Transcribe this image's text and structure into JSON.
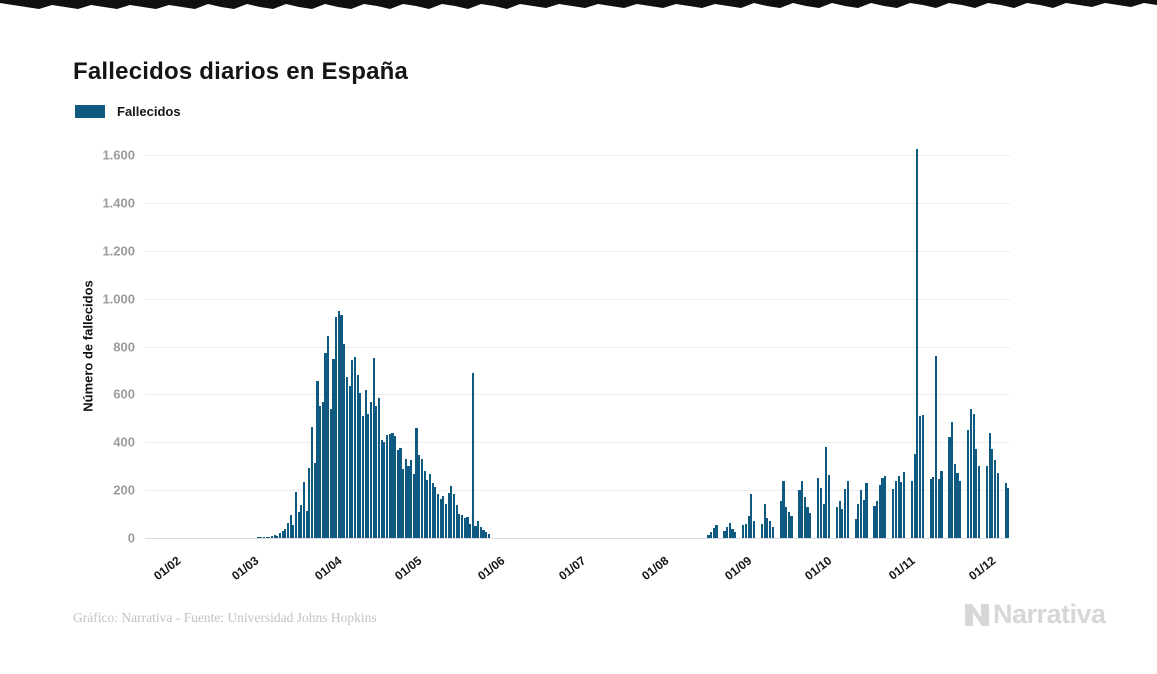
{
  "title": "Fallecidos diarios en España",
  "legend": {
    "label": "Fallecidos",
    "color": "#0f5a80"
  },
  "footer": {
    "credit": "Gráfico: Narrativa - Fuente: Universidad Johns Hopkins"
  },
  "brand": {
    "name": "Narrativa"
  },
  "colors": {
    "bar": "#0f5a80",
    "title_text": "#151515",
    "axis_tick_text": "#9c9c9c",
    "x_tick_text": "#151515",
    "grid": "#ededed",
    "footer_text": "#c3c3c3",
    "brand_text": "#d7d7d7"
  },
  "chart_data": {
    "type": "bar",
    "title": "Fallecidos diarios en España",
    "series_name": "Fallecidos",
    "xlabel": "",
    "ylabel": "Número de fallecidos",
    "ylim": [
      0,
      1600
    ],
    "grid": true,
    "legend_position": "top-left",
    "domain": {
      "start": "2020-01-21",
      "end": "2020-12-09"
    },
    "y_ticks": [
      {
        "value": 0,
        "label": "0"
      },
      {
        "value": 200,
        "label": "200"
      },
      {
        "value": 400,
        "label": "400"
      },
      {
        "value": 600,
        "label": "600"
      },
      {
        "value": 800,
        "label": "800"
      },
      {
        "value": 1000,
        "label": "1.000"
      },
      {
        "value": 1200,
        "label": "1.200"
      },
      {
        "value": 1400,
        "label": "1.400"
      },
      {
        "value": 1600,
        "label": "1.600"
      }
    ],
    "x_ticks": [
      {
        "date": "2020-02-01",
        "label": "01/02"
      },
      {
        "date": "2020-03-01",
        "label": "01/03"
      },
      {
        "date": "2020-04-01",
        "label": "01/04"
      },
      {
        "date": "2020-05-01",
        "label": "01/05"
      },
      {
        "date": "2020-06-01",
        "label": "01/06"
      },
      {
        "date": "2020-07-01",
        "label": "01/07"
      },
      {
        "date": "2020-08-01",
        "label": "01/08"
      },
      {
        "date": "2020-09-01",
        "label": "01/09"
      },
      {
        "date": "2020-10-01",
        "label": "01/10"
      },
      {
        "date": "2020-11-01",
        "label": "01/11"
      },
      {
        "date": "2020-12-01",
        "label": "01/12"
      }
    ],
    "segments": [
      {
        "start_date": "2020-03-03",
        "values": [
          1,
          2,
          1,
          2,
          4,
          7,
          11,
          7,
          19,
          31,
          37,
          63,
          96,
          56,
          191,
          107,
          139,
          235,
          111,
          292,
          462,
          312,
          656,
          550,
          569,
          773,
          844,
          537,
          748,
          923,
          950,
          932,
          809,
          674,
          637,
          743,
          757,
          683,
          605,
          510,
          619,
          517,
          567,
          753,
          551,
          585,
          410,
          399,
          430,
          435,
          440,
          428,
          367,
          378,
          288,
          331,
          301,
          325,
          268,
          460,
          345,
          330,
          281,
          244,
          268,
          229,
          213,
          185,
          164,
          176,
          143,
          190,
          217,
          184,
          138,
          102,
          95,
          83,
          87,
          59,
          688,
          52,
          70,
          48,
          34,
          26,
          17
        ]
      },
      {
        "start_date": "2020-08-18",
        "values": [
          12,
          25,
          42,
          55,
          0,
          0,
          28,
          48,
          62,
          38,
          24,
          0,
          0,
          56,
          58,
          90,
          185,
          70,
          0,
          0,
          60,
          140,
          85,
          70,
          45,
          0,
          0,
          155,
          240,
          130,
          110,
          90,
          0,
          0,
          200,
          240,
          170,
          130,
          105,
          0,
          0,
          250,
          210,
          140,
          380,
          265,
          0,
          0,
          130,
          155,
          120,
          205,
          240,
          0,
          0,
          80,
          140,
          200,
          160,
          230,
          0,
          0,
          135,
          155,
          220,
          250,
          260,
          0,
          0,
          205,
          240,
          260,
          235,
          275,
          0,
          0,
          240,
          350,
          1623,
          510,
          515,
          0,
          0,
          245,
          255,
          760,
          245,
          280,
          0,
          0,
          420,
          485,
          310,
          270,
          240,
          0,
          0,
          450,
          540,
          520,
          370,
          300,
          0,
          0,
          300,
          440,
          370,
          325,
          270,
          0,
          0,
          230,
          210
        ]
      }
    ]
  }
}
